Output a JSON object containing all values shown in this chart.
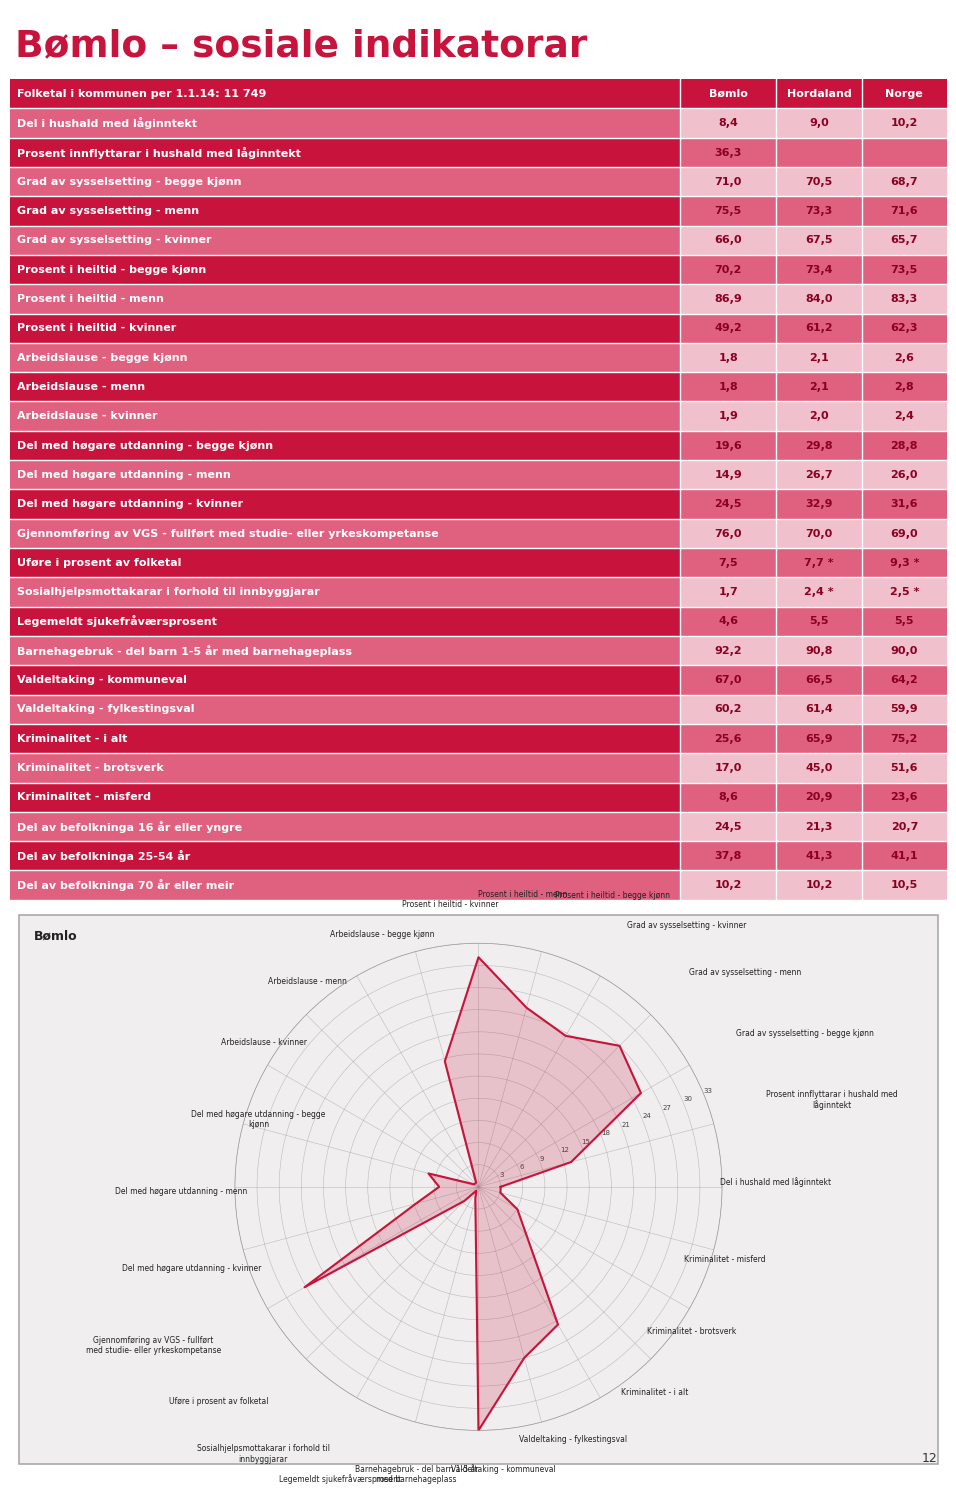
{
  "title": "Bømlo – sosiale indikatorar",
  "header_row": [
    "Folketal i kommunen per 1.1.14: 11 749",
    "Bømlo",
    "Hordaland",
    "Norge"
  ],
  "rows": [
    {
      "label": "Del i hushald med låginntekt",
      "bomlo": "8,4",
      "hordaland": "9,0",
      "norge": "10,2",
      "dark": false
    },
    {
      "label": "Prosent innflyttarar i hushald med låginntekt",
      "bomlo": "36,3",
      "hordaland": "",
      "norge": "",
      "dark": true
    },
    {
      "label": "Grad av sysselsetting - begge kjønn",
      "bomlo": "71,0",
      "hordaland": "70,5",
      "norge": "68,7",
      "dark": false
    },
    {
      "label": "Grad av sysselsetting - menn",
      "bomlo": "75,5",
      "hordaland": "73,3",
      "norge": "71,6",
      "dark": true
    },
    {
      "label": "Grad av sysselsetting - kvinner",
      "bomlo": "66,0",
      "hordaland": "67,5",
      "norge": "65,7",
      "dark": false
    },
    {
      "label": "Prosent i heiltid - begge kjønn",
      "bomlo": "70,2",
      "hordaland": "73,4",
      "norge": "73,5",
      "dark": true
    },
    {
      "label": "Prosent i heiltid - menn",
      "bomlo": "86,9",
      "hordaland": "84,0",
      "norge": "83,3",
      "dark": false
    },
    {
      "label": "Prosent i heiltid - kvinner",
      "bomlo": "49,2",
      "hordaland": "61,2",
      "norge": "62,3",
      "dark": true
    },
    {
      "label": "Arbeidslause - begge kjønn",
      "bomlo": "1,8",
      "hordaland": "2,1",
      "norge": "2,6",
      "dark": false
    },
    {
      "label": "Arbeidslause - menn",
      "bomlo": "1,8",
      "hordaland": "2,1",
      "norge": "2,8",
      "dark": true
    },
    {
      "label": "Arbeidslause - kvinner",
      "bomlo": "1,9",
      "hordaland": "2,0",
      "norge": "2,4",
      "dark": false
    },
    {
      "label": "Del med høgare utdanning - begge kjønn",
      "bomlo": "19,6",
      "hordaland": "29,8",
      "norge": "28,8",
      "dark": true
    },
    {
      "label": "Del med høgare utdanning - menn",
      "bomlo": "14,9",
      "hordaland": "26,7",
      "norge": "26,0",
      "dark": false
    },
    {
      "label": "Del med høgare utdanning - kvinner",
      "bomlo": "24,5",
      "hordaland": "32,9",
      "norge": "31,6",
      "dark": true
    },
    {
      "label": "Gjennomføring av VGS - fullført med studie- eller yrkeskompetanse",
      "bomlo": "76,0",
      "hordaland": "70,0",
      "norge": "69,0",
      "dark": false
    },
    {
      "label": "Uføre i prosent av folketal",
      "bomlo": "7,5",
      "hordaland": "7,7 *",
      "norge": "9,3 *",
      "dark": true
    },
    {
      "label": "Sosialhjelpsmottakarar i forhold til innbyggjarar",
      "bomlo": "1,7",
      "hordaland": "2,4 *",
      "norge": "2,5 *",
      "dark": false
    },
    {
      "label": "Legemeldt sjukefråværsprosent",
      "bomlo": "4,6",
      "hordaland": "5,5",
      "norge": "5,5",
      "dark": true
    },
    {
      "label": "Barnehagebruk - del barn 1-5 år med barnehageplass",
      "bomlo": "92,2",
      "hordaland": "90,8",
      "norge": "90,0",
      "dark": false
    },
    {
      "label": "Valdeltaking - kommuneval",
      "bomlo": "67,0",
      "hordaland": "66,5",
      "norge": "64,2",
      "dark": true
    },
    {
      "label": "Valdeltaking - fylkestingsval",
      "bomlo": "60,2",
      "hordaland": "61,4",
      "norge": "59,9",
      "dark": false
    },
    {
      "label": "Kriminalitet - i alt",
      "bomlo": "25,6",
      "hordaland": "65,9",
      "norge": "75,2",
      "dark": true
    },
    {
      "label": "Kriminalitet - brotsverk",
      "bomlo": "17,0",
      "hordaland": "45,0",
      "norge": "51,6",
      "dark": false
    },
    {
      "label": "Kriminalitet - misferd",
      "bomlo": "8,6",
      "hordaland": "20,9",
      "norge": "23,6",
      "dark": true
    },
    {
      "label": "Del av befolkninga 16 år eller yngre",
      "bomlo": "24,5",
      "hordaland": "21,3",
      "norge": "20,7",
      "dark": false
    },
    {
      "label": "Del av befolkninga 25-54 år",
      "bomlo": "37,8",
      "hordaland": "41,3",
      "norge": "41,1",
      "dark": true
    },
    {
      "label": "Del av befolkninga 70 år eller meir",
      "bomlo": "10,2",
      "hordaland": "10,2",
      "norge": "10,5",
      "dark": false
    }
  ],
  "color_dark_row": "#c8143c",
  "color_light_row": "#e06080",
  "color_header": "#c8143c",
  "color_data_light": "#f0c0cc",
  "color_data_dark": "#e06080",
  "color_text_white": "#ffffff",
  "color_text_dark": "#8b0020",
  "title_color": "#c8143c",
  "background_color": "#ffffff",
  "radar_labels": [
    "Del i hushald med låginntekt",
    "Prosent innflyttarar i hushald med\nlåginntekt",
    "Grad av sysselsetting - begge kjønn",
    "Grad av sysselsetting - menn",
    "Grad av sysselsetting - kvinner",
    "Prosent i heiltid - begge kjønn",
    "Prosent i heiltid - menn",
    "Prosent i heiltid - kvinner",
    "Arbeidslause - begge kjønn",
    "Arbeidslause - menn",
    "Arbeidslause - kvinner",
    "Del med høgare utdanning - begge\nkjønn",
    "Del med høgare utdanning - menn",
    "Del med høgare utdanning - kvinner",
    "Gjennomføring av VGS - fullført\nmed studie- eller yrkeskompetanse",
    "Uføre i prosent av folketal",
    "Sosialhjelpsmottakarar i forhold til\ninnbyggjarar",
    "Legemeldt sjukefråværsprosent",
    "Barnehagebruk - del barn 1-5 år\nmed barnehageplass",
    "Valdeltaking - kommuneval",
    "Valdeltaking - fylkestingsval",
    "Kriminalitet - i alt",
    "Kriminalitet - brotsverk",
    "Kriminalitet - misferd"
  ],
  "radar_raw_values": [
    8.4,
    36.3,
    71.0,
    75.5,
    66.0,
    70.2,
    86.9,
    49.2,
    1.8,
    1.8,
    1.9,
    19.6,
    14.9,
    24.5,
    76.0,
    7.5,
    1.7,
    4.6,
    92.2,
    67.0,
    60.2,
    25.6,
    17.0,
    8.6
  ],
  "radar_scale_max": 33,
  "radar_yticks": [
    0,
    3,
    6,
    9,
    12,
    15,
    18,
    21,
    24,
    27,
    30,
    33
  ],
  "radar_color": "#c8143c",
  "radar_bg": "#f0eeee",
  "radar_border": "#cccccc",
  "page_number": "12"
}
